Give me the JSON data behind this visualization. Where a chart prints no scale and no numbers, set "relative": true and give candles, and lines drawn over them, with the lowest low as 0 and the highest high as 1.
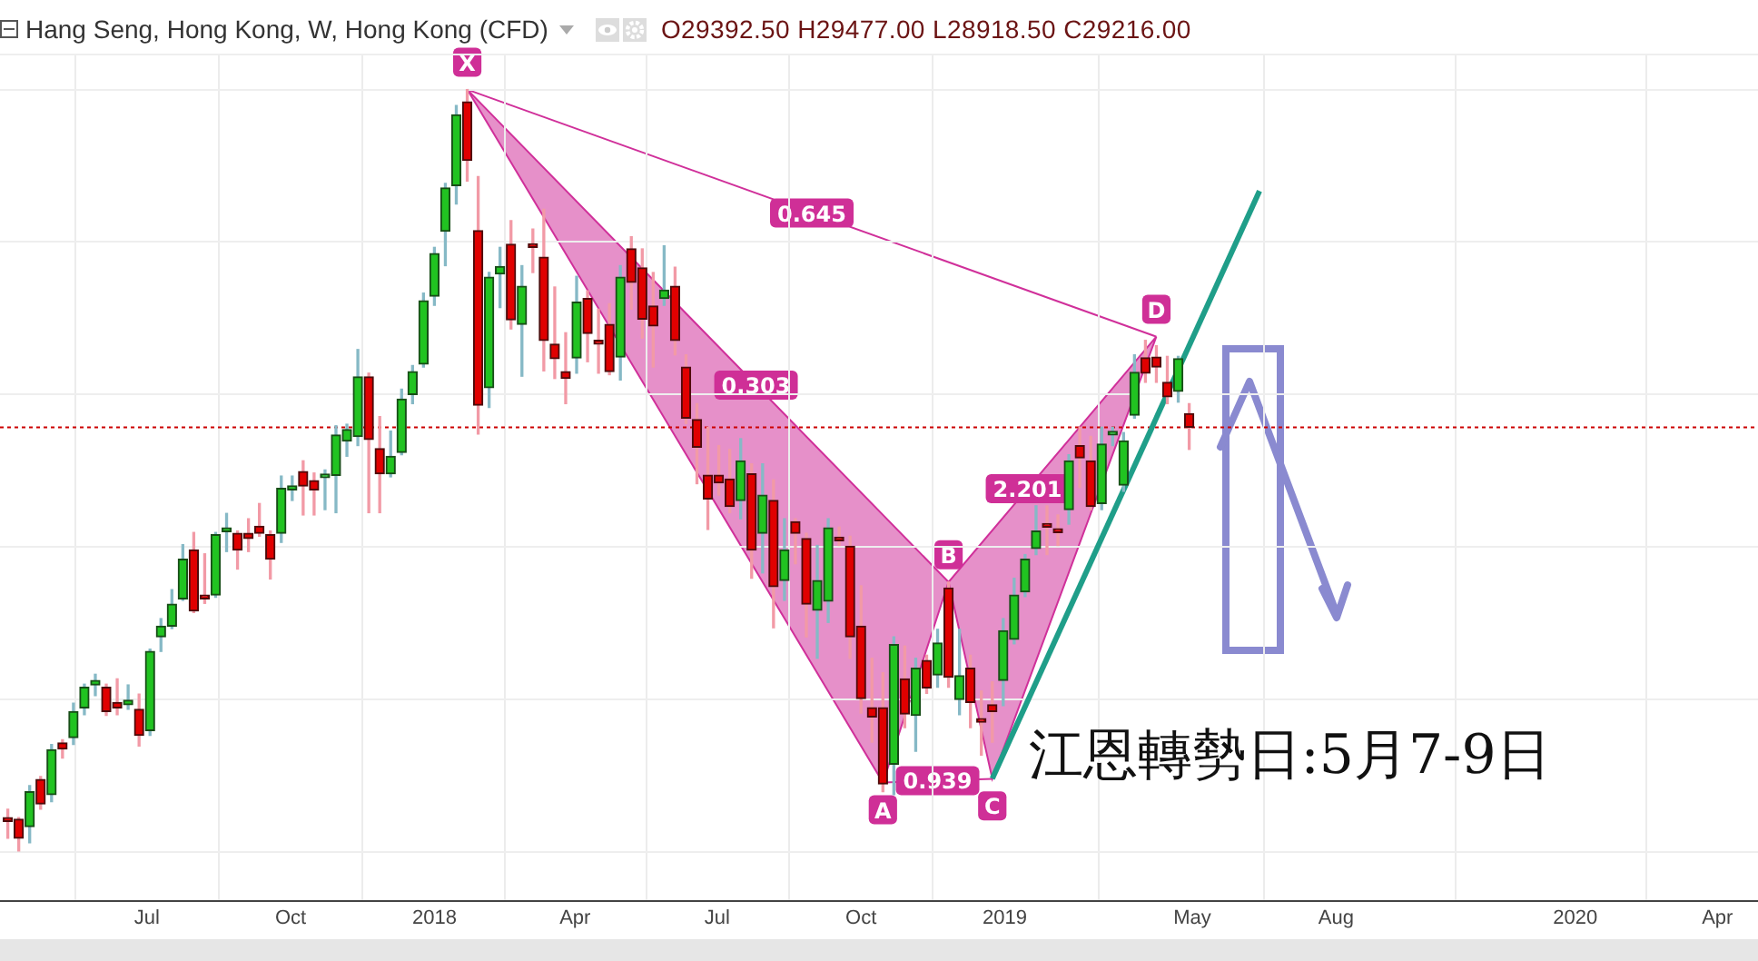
{
  "chart_data": {
    "type": "candlestick",
    "title": "Hang Seng, Hong Kong, W, Hong Kong (CFD)",
    "subtitle": "O29392.50 H29477.00 L28918.50 C29216.00",
    "relative": true,
    "x": [
      "2017-04-03",
      "2017-04-10",
      "2017-04-17",
      "2017-04-24",
      "2017-05-01",
      "2017-05-08",
      "2017-05-15",
      "2017-05-22",
      "2017-05-29",
      "2017-06-05",
      "2017-06-12",
      "2017-06-19",
      "2017-06-26",
      "2017-07-03",
      "2017-07-10",
      "2017-07-17",
      "2017-07-24",
      "2017-07-31",
      "2017-08-07",
      "2017-08-14",
      "2017-08-21",
      "2017-08-28",
      "2017-09-04",
      "2017-09-11",
      "2017-09-18",
      "2017-09-25",
      "2017-10-02",
      "2017-10-09",
      "2017-10-16",
      "2017-10-23",
      "2017-10-30",
      "2017-11-06",
      "2017-11-13",
      "2017-11-20",
      "2017-11-27",
      "2017-12-04",
      "2017-12-11",
      "2017-12-18",
      "2017-12-25",
      "2018-01-01",
      "2018-01-08",
      "2018-01-15",
      "2018-01-22",
      "2018-01-29",
      "2018-02-05",
      "2018-02-12",
      "2018-02-19",
      "2018-02-26",
      "2018-03-05",
      "2018-03-12",
      "2018-03-19",
      "2018-03-26",
      "2018-04-02",
      "2018-04-09",
      "2018-04-16",
      "2018-04-23",
      "2018-04-30",
      "2018-05-07",
      "2018-05-14",
      "2018-05-21",
      "2018-05-28",
      "2018-06-04",
      "2018-06-11",
      "2018-06-18",
      "2018-06-25",
      "2018-07-02",
      "2018-07-09",
      "2018-07-16",
      "2018-07-23",
      "2018-07-30",
      "2018-08-06",
      "2018-08-13",
      "2018-08-20",
      "2018-08-27",
      "2018-09-03",
      "2018-09-10",
      "2018-09-17",
      "2018-09-24",
      "2018-10-01",
      "2018-10-08",
      "2018-10-15",
      "2018-10-22",
      "2018-10-29",
      "2018-11-05",
      "2018-11-12",
      "2018-11-19",
      "2018-11-26",
      "2018-12-03",
      "2018-12-10",
      "2018-12-17",
      "2018-12-24",
      "2018-12-31",
      "2019-01-07",
      "2019-01-14",
      "2019-01-21",
      "2019-01-28",
      "2019-02-04",
      "2019-02-11",
      "2019-02-18",
      "2019-02-25",
      "2019-03-04",
      "2019-03-11",
      "2019-03-18",
      "2019-03-25",
      "2019-04-01",
      "2019-04-08",
      "2019-04-15",
      "2019-04-22",
      "2019-04-29"
    ],
    "ohlc": [
      [
        0.045,
        0.056,
        0.018,
        0.04
      ],
      [
        0.043,
        0.045,
        0,
        0.018
      ],
      [
        0.033,
        0.087,
        0.012,
        0.079
      ],
      [
        0.095,
        0.099,
        0.056,
        0.063
      ],
      [
        0.075,
        0.141,
        0.066,
        0.134
      ],
      [
        0.143,
        0.147,
        0.123,
        0.135
      ],
      [
        0.15,
        0.195,
        0.141,
        0.184
      ],
      [
        0.189,
        0.22,
        0.18,
        0.216
      ],
      [
        0.219,
        0.233,
        0.205,
        0.225
      ],
      [
        0.216,
        0.22,
        0.179,
        0.184
      ],
      [
        0.196,
        0.227,
        0.18,
        0.189
      ],
      [
        0.193,
        0.219,
        0.187,
        0.199
      ],
      [
        0.187,
        0.207,
        0.139,
        0.153
      ],
      [
        0.159,
        0.266,
        0.153,
        0.263
      ],
      [
        0.282,
        0.306,
        0.263,
        0.296
      ],
      [
        0.296,
        0.344,
        0.293,
        0.325
      ],
      [
        0.332,
        0.403,
        0.33,
        0.384
      ],
      [
        0.396,
        0.419,
        0.314,
        0.316
      ],
      [
        0.337,
        0.391,
        0.326,
        0.332
      ],
      [
        0.337,
        0.419,
        0.334,
        0.416
      ],
      [
        0.42,
        0.444,
        0.394,
        0.425
      ],
      [
        0.418,
        0.421,
        0.371,
        0.396
      ],
      [
        0.418,
        0.437,
        0.394,
        0.411
      ],
      [
        0.427,
        0.457,
        0.414,
        0.418
      ],
      [
        0.416,
        0.421,
        0.358,
        0.384
      ],
      [
        0.418,
        0.493,
        0.406,
        0.477
      ],
      [
        0.475,
        0.493,
        0.461,
        0.48
      ],
      [
        0.499,
        0.513,
        0.442,
        0.48
      ],
      [
        0.487,
        0.497,
        0.442,
        0.475
      ],
      [
        0.491,
        0.501,
        0.449,
        0.492
      ],
      [
        0.494,
        0.559,
        0.445,
        0.547
      ],
      [
        0.539,
        0.561,
        0.519,
        0.554
      ],
      [
        0.545,
        0.659,
        0.533,
        0.623
      ],
      [
        0.623,
        0.628,
        0.445,
        0.541
      ],
      [
        0.529,
        0.571,
        0.445,
        0.496
      ],
      [
        0.496,
        0.552,
        0.492,
        0.519
      ],
      [
        0.524,
        0.607,
        0.521,
        0.594
      ],
      [
        0.6,
        0.638,
        0.588,
        0.63
      ],
      [
        0.64,
        0.733,
        0.636,
        0.723
      ],
      [
        0.729,
        0.793,
        0.717,
        0.785
      ],
      [
        0.814,
        0.877,
        0.769,
        0.871
      ],
      [
        0.874,
        0.979,
        0.85,
        0.967
      ],
      [
        0.984,
        1,
        0.88,
        0.907
      ],
      [
        0.815,
        0.886,
        0.548,
        0.586
      ],
      [
        0.609,
        0.76,
        0.583,
        0.754
      ],
      [
        0.758,
        0.793,
        0.714,
        0.768
      ],
      [
        0.797,
        0.828,
        0.686,
        0.698
      ],
      [
        0.692,
        0.769,
        0.624,
        0.742
      ],
      [
        0.795,
        0.817,
        0.76,
        0.793
      ],
      [
        0.78,
        0.843,
        0.631,
        0.671
      ],
      [
        0.666,
        0.741,
        0.621,
        0.647
      ],
      [
        0.63,
        0.681,
        0.588,
        0.621
      ],
      [
        0.648,
        0.755,
        0.628,
        0.721
      ],
      [
        0.726,
        0.736,
        0.643,
        0.68
      ],
      [
        0.671,
        0.712,
        0.628,
        0.666
      ],
      [
        0.692,
        0.719,
        0.626,
        0.63
      ],
      [
        0.649,
        0.769,
        0.619,
        0.754
      ],
      [
        0.791,
        0.807,
        0.712,
        0.747
      ],
      [
        0.766,
        0.791,
        0.674,
        0.699
      ],
      [
        0.716,
        0.76,
        0.636,
        0.69
      ],
      [
        0.726,
        0.795,
        0.717,
        0.737
      ],
      [
        0.742,
        0.767,
        0.652,
        0.671
      ],
      [
        0.636,
        0.652,
        0.562,
        0.569
      ],
      [
        0.567,
        0.588,
        0.483,
        0.531
      ],
      [
        0.494,
        0.557,
        0.423,
        0.463
      ],
      [
        0.494,
        0.533,
        0.468,
        0.484
      ],
      [
        0.489,
        0.528,
        0.445,
        0.453
      ],
      [
        0.461,
        0.542,
        0.437,
        0.513
      ],
      [
        0.496,
        0.509,
        0.359,
        0.396
      ],
      [
        0.418,
        0.509,
        0.366,
        0.468
      ],
      [
        0.461,
        0.488,
        0.294,
        0.348
      ],
      [
        0.356,
        0.437,
        0.33,
        0.396
      ],
      [
        0.433,
        0.437,
        0.378,
        0.418
      ],
      [
        0.411,
        0.418,
        0.282,
        0.325
      ],
      [
        0.317,
        0.402,
        0.254,
        0.356
      ],
      [
        0.329,
        0.437,
        0.301,
        0.425
      ],
      [
        0.409,
        0.426,
        0.402,
        0.408
      ],
      [
        0.401,
        0.414,
        0.254,
        0.282
      ],
      [
        0.296,
        0.349,
        0.182,
        0.201
      ],
      [
        0.189,
        0.254,
        0.144,
        0.177
      ],
      [
        0.189,
        0.235,
        0.079,
        0.089
      ],
      [
        0.115,
        0.282,
        0.075,
        0.272
      ],
      [
        0.227,
        0.27,
        0.163,
        0.181
      ],
      [
        0.179,
        0.254,
        0.132,
        0.241
      ],
      [
        0.251,
        0.258,
        0.208,
        0.215
      ],
      [
        0.232,
        0.292,
        0.216,
        0.274
      ],
      [
        0.346,
        0.354,
        0.216,
        0.229
      ],
      [
        0.2,
        0.292,
        0.18,
        0.231
      ],
      [
        0.241,
        0.258,
        0.163,
        0.196
      ],
      [
        0.171,
        0.211,
        0.127,
        0.17
      ],
      [
        0.193,
        0.223,
        0.144,
        0.184
      ],
      [
        0.225,
        0.306,
        0.192,
        0.29
      ],
      [
        0.279,
        0.359,
        0.273,
        0.337
      ],
      [
        0.341,
        0.39,
        0.335,
        0.384
      ],
      [
        0.398,
        0.454,
        0.39,
        0.421
      ],
      [
        0.429,
        0.454,
        0.39,
        0.426
      ],
      [
        0.421,
        0.442,
        0.402,
        0.419
      ],
      [
        0.449,
        0.521,
        0.43,
        0.513
      ],
      [
        0.533,
        0.557,
        0.478,
        0.517
      ],
      [
        0.513,
        0.545,
        0.449,
        0.453
      ],
      [
        0.457,
        0.557,
        0.449,
        0.535
      ],
      [
        0.547,
        0.557,
        0.533,
        0.548
      ],
      [
        0.481,
        0.55,
        0.473,
        0.539
      ],
      [
        0.573,
        0.652,
        0.569,
        0.629
      ],
      [
        0.648,
        0.671,
        0.616,
        0.628
      ],
      [
        0.649,
        0.664,
        0.616,
        0.636
      ],
      [
        0.616,
        0.65,
        0.588,
        0.597
      ],
      [
        0.604,
        0.65,
        0.59,
        0.647
      ],
      [
        0.575,
        0.588,
        0.528,
        0.557
      ]
    ],
    "xlim": [
      "2017-03-29",
      "2020-04-27"
    ],
    "xticks": [
      {
        "value": "2017-07-01",
        "label": "Jul"
      },
      {
        "value": "2017-10-01",
        "label": "Oct"
      },
      {
        "value": "2018-01-01",
        "label": "2018"
      },
      {
        "value": "2018-04-01",
        "label": "Apr"
      },
      {
        "value": "2018-07-01",
        "label": "Jul"
      },
      {
        "value": "2018-10-01",
        "label": "Oct"
      },
      {
        "value": "2019-01-01",
        "label": "2019"
      },
      {
        "value": "2019-05-01",
        "label": "May"
      },
      {
        "value": "2019-08-01",
        "label": "Aug"
      },
      {
        "value": "2020-01-01",
        "label": "2020"
      },
      {
        "value": "2020-04-01",
        "label": "Apr"
      }
    ],
    "series": [
      {
        "type": "line",
        "color": "#1f9e89",
        "x": [
          "2018-12-24",
          "2019-06-13"
        ],
        "values": [
          0.096,
          0.867
        ]
      }
    ],
    "ref_lines": [
      {
        "axis": "y",
        "value": 0.557,
        "color": "#cc0000",
        "line_style": "dotted"
      }
    ],
    "annotations": [
      {
        "text": "X",
        "x": "2018-01-22",
        "y": 1
      },
      {
        "text": "A",
        "x": "2018-10-15",
        "y": 0.091
      },
      {
        "text": "B",
        "x": "2018-11-26",
        "y": 0.354
      },
      {
        "text": "C",
        "x": "2018-12-24",
        "y": 0.096
      },
      {
        "text": "D",
        "x": "2019-04-08",
        "y": 0.676
      },
      "0.645",
      "0.303",
      "0.939",
      "2.201",
      "江恩轉勢日:5月7-9日"
    ],
    "grid": true,
    "legend": false,
    "tick_labels": "x"
  }
}
